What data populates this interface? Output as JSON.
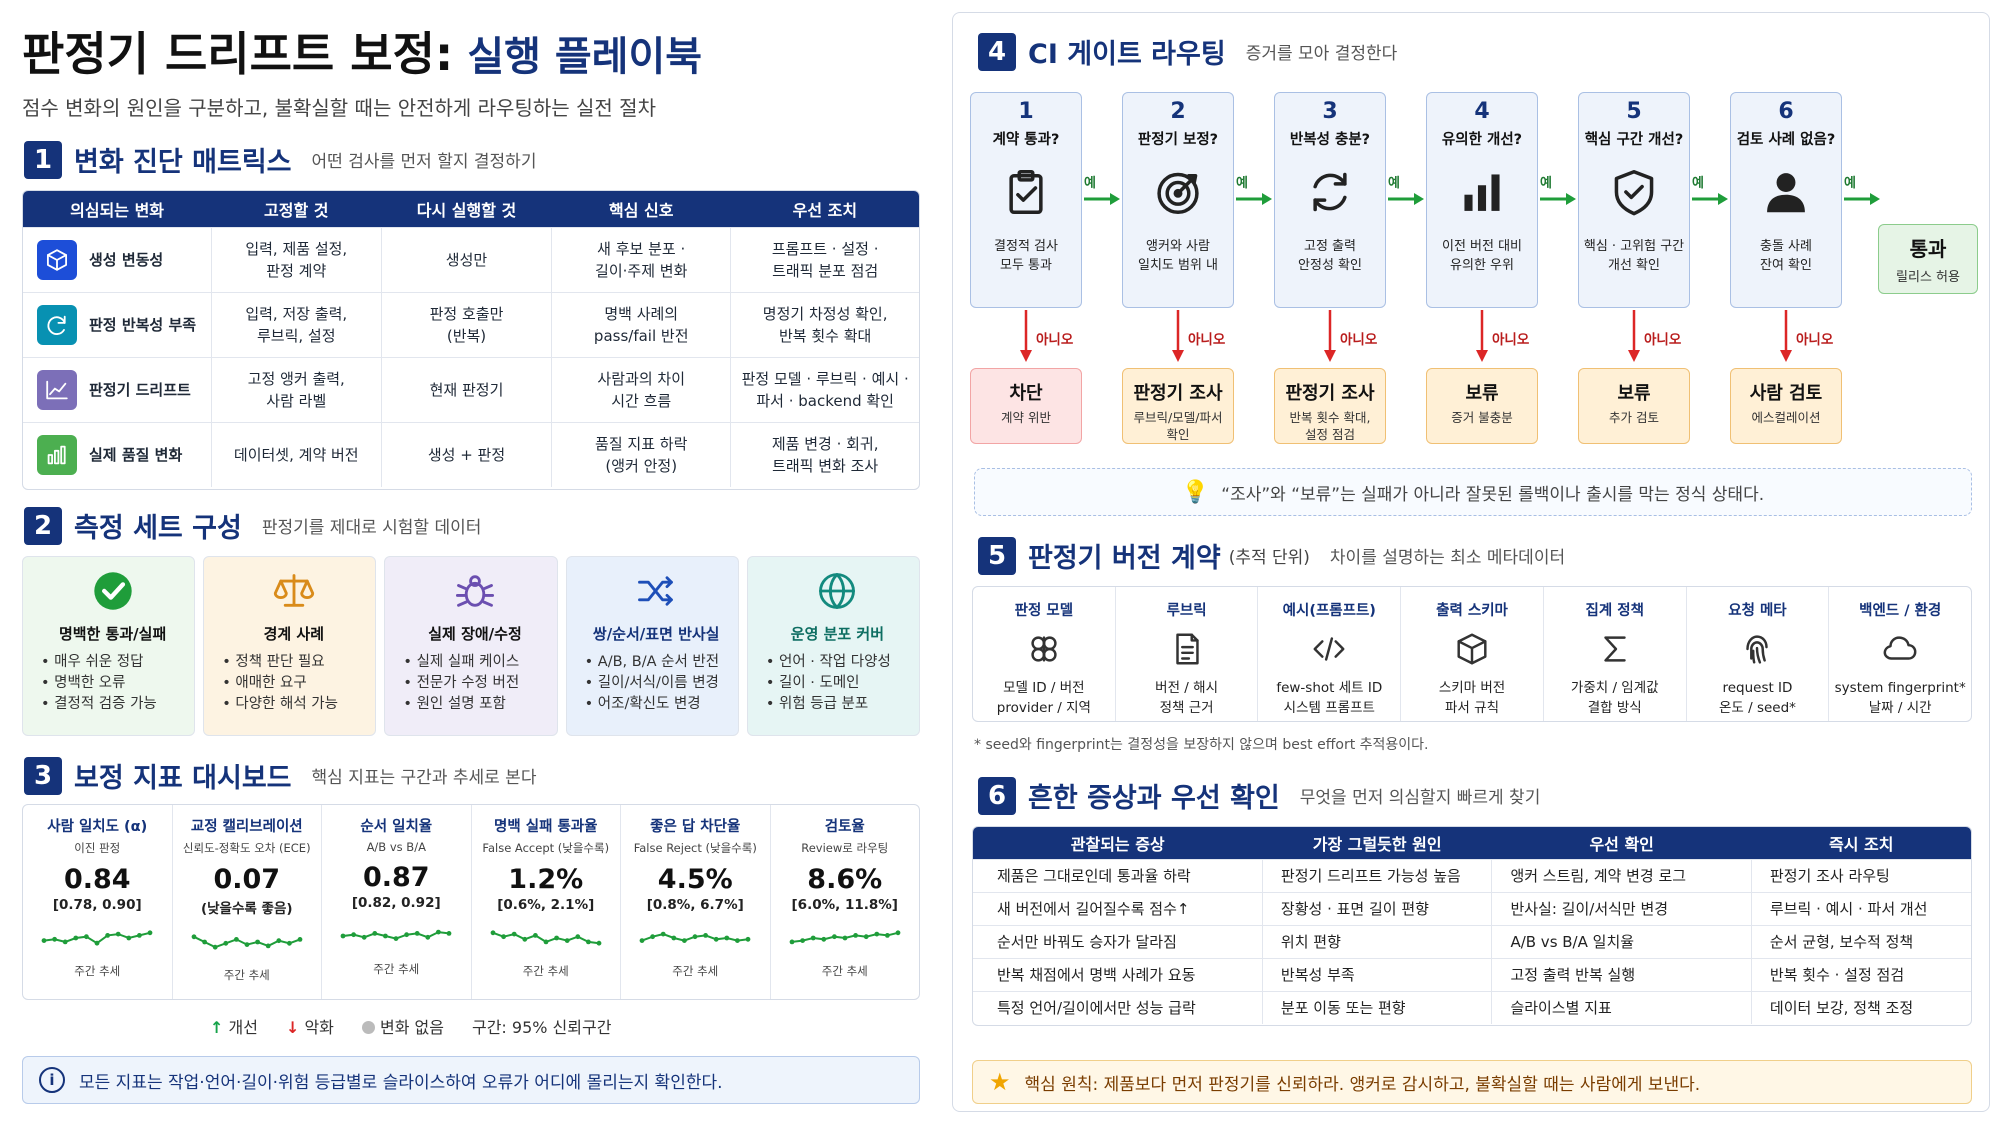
{
  "header": {
    "title_main": "판정기 드리프트 보정:",
    "title_sub": "실행 플레이북",
    "subtitle": "점수 변화의 원인을 구분하고, 불확실할 때는 안전하게 라우팅하는 실전 절차"
  },
  "s1": {
    "num": "1",
    "title": "변화 진단 매트릭스",
    "sub": "어떤 검사를 먼저 할지 결정하기",
    "headers": [
      "의심되는 변화",
      "고정할 것",
      "다시 실행할 것",
      "핵심 신호",
      "우선 조치"
    ],
    "rows": [
      {
        "icon": "cube-icon",
        "color": "#1d4ed8",
        "name": "생성 변동성",
        "fix": "입력, 제품 설정,\n판정 계약",
        "rerun": "생성만",
        "signal": "새 후보 분포 ·\n길이·주제 변화",
        "action": "프롬프트 · 설정 ·\n트래픽 분포 점검"
      },
      {
        "icon": "refresh-icon",
        "color": "#0891b2",
        "name": "판정 반복성 부족",
        "fix": "입력, 저장 출력,\n루브릭, 설정",
        "rerun": "판정 호출만\n(반복)",
        "signal": "명백 사례의\npass/fail 반전",
        "action": "명정기 차정성 확인,\n반복 횟수 확대"
      },
      {
        "icon": "trend-icon",
        "color": "#7c6fb8",
        "name": "판정기 드리프트",
        "fix": "고정 앵커 출력,\n사람 라벨",
        "rerun": "현재 판정기",
        "signal": "사람과의 차이\n시간 흐름",
        "action": "판정 모델 · 루브릭 · 예시 ·\n파서 · backend 확인"
      },
      {
        "icon": "bars-icon",
        "color": "#4caf50",
        "name": "실제 품질 변화",
        "fix": "데이터셋, 계약 버전",
        "rerun": "생성 + 판정",
        "signal": "품질 지표 하락\n(앵커 안정)",
        "action": "제품 변경 · 회귀,\n트래픽 변화 조사"
      }
    ]
  },
  "s2": {
    "num": "2",
    "title": "측정 세트 구성",
    "sub": "판정기를 제대로 시험할 데이터",
    "cards": [
      {
        "icon": "check-icon",
        "bg": "#eef8ee",
        "title": "명백한 통과/실패",
        "items": [
          "매우 쉬운 정답",
          "명백한 오류",
          "결정적 검증 가능"
        ]
      },
      {
        "icon": "scale-icon",
        "bg": "#fdf3e2",
        "title": "경계 사례",
        "items": [
          "정책 판단 필요",
          "애매한 요구",
          "다양한 해석 가능"
        ]
      },
      {
        "icon": "bug-icon",
        "bg": "#f0edf8",
        "title": "실제 장애/수정",
        "items": [
          "실제 실패 케이스",
          "전문가 수정 버전",
          "원인 설명 포함"
        ]
      },
      {
        "icon": "shuffle-icon",
        "bg": "#e8f0fb",
        "title": "쌍/순서/표면 반사실",
        "items": [
          "A/B, B/A 순서 반전",
          "길이/서식/이름 변경",
          "어조/확신도 변경"
        ]
      },
      {
        "icon": "globe-icon",
        "bg": "#e6f5f4",
        "title": "운영 분포 커버",
        "items": [
          "언어 · 작업 다양성",
          "길이 · 도메인",
          "위험 등급 분포"
        ]
      }
    ]
  },
  "s3": {
    "num": "3",
    "title": "보정 지표 대시보드",
    "sub": "핵심 지표는 구간과 추세로 본다",
    "metrics": [
      {
        "name": "사람 일치도 (α)",
        "desc": "이진 판정",
        "value": "0.84",
        "ci": "[0.78, 0.90]",
        "trend": "주간 추세",
        "spark": [
          0.4,
          0.45,
          0.35,
          0.5,
          0.55,
          0.3,
          0.6,
          0.65,
          0.5,
          0.6,
          0.7
        ]
      },
      {
        "name": "교정 캘리브레이션",
        "desc": "신뢰도-정확도 오차 (ECE)",
        "value": "0.07",
        "ci": "(낮을수록 좋음)",
        "trend": "주간 추세",
        "spark": [
          0.7,
          0.5,
          0.3,
          0.45,
          0.6,
          0.4,
          0.5,
          0.35,
          0.55,
          0.45,
          0.6
        ]
      },
      {
        "name": "순서 일치율",
        "desc": "A/B vs B/A",
        "value": "0.87",
        "ci": "[0.82, 0.92]",
        "trend": "주간 추세",
        "spark": [
          0.5,
          0.55,
          0.45,
          0.6,
          0.5,
          0.4,
          0.55,
          0.6,
          0.45,
          0.65,
          0.6
        ]
      },
      {
        "name": "명백 실패 통과율",
        "desc": "False Accept (낮을수록)",
        "value": "1.2%",
        "ci": "[0.6%, 2.1%]",
        "trend": "주간 추세",
        "spark": [
          0.7,
          0.55,
          0.65,
          0.45,
          0.6,
          0.35,
          0.5,
          0.4,
          0.55,
          0.35,
          0.3
        ]
      },
      {
        "name": "좋은 답 차단율",
        "desc": "False Reject (낮을수록)",
        "value": "4.5%",
        "ci": "[0.8%, 6.7%]",
        "trend": "주간 추세",
        "spark": [
          0.4,
          0.55,
          0.65,
          0.5,
          0.4,
          0.55,
          0.6,
          0.45,
          0.5,
          0.4,
          0.45
        ]
      },
      {
        "name": "검토율",
        "desc": "Review로 라우팅",
        "value": "8.6%",
        "ci": "[6.0%, 11.8%]",
        "trend": "주간 추세",
        "spark": [
          0.35,
          0.4,
          0.5,
          0.45,
          0.55,
          0.5,
          0.6,
          0.55,
          0.65,
          0.6,
          0.7
        ]
      }
    ],
    "legend": {
      "up": "개선",
      "down": "악화",
      "none": "변화 없음",
      "interval": "구간: 95% 신뢰구간"
    }
  },
  "note_left": "모든 지표는 작업·언어·길이·위험 등급별로 슬라이스하여 오류가 어디에 몰리는지 확인한다.",
  "s4": {
    "num": "4",
    "title": "CI 게이트 라우팅",
    "sub": "증거를 모아 결정한다",
    "yes": "예",
    "no": "아니오",
    "steps": [
      {
        "n": "1",
        "q": "계약 통과?",
        "icon": "clipboard-icon",
        "desc": "결정적 검사\n모두 통과",
        "fail_title": "차단",
        "fail_desc": "계약 위반",
        "fail_type": "red"
      },
      {
        "n": "2",
        "q": "판정기 보정?",
        "icon": "target-icon",
        "desc": "앵커와 사람\n일치도 범위 내",
        "fail_title": "판정기 조사",
        "fail_desc": "루브릭/모델/파서\n확인",
        "fail_type": "orange"
      },
      {
        "n": "3",
        "q": "반복성 충분?",
        "icon": "cycle-icon",
        "desc": "고정 출력\n안정성 확인",
        "fail_title": "판정기 조사",
        "fail_desc": "반복 횟수 확대,\n설정 점검",
        "fail_type": "orange"
      },
      {
        "n": "4",
        "q": "유의한 개선?",
        "icon": "chart-icon",
        "desc": "이전 버전 대비\n유의한 우위",
        "fail_title": "보류",
        "fail_desc": "증거 불충분",
        "fail_type": "orange"
      },
      {
        "n": "5",
        "q": "핵심 구간 개선?",
        "icon": "shield-icon",
        "desc": "핵심 · 고위험 구간\n개선 확인",
        "fail_title": "보류",
        "fail_desc": "추가 검토",
        "fail_type": "orange"
      },
      {
        "n": "6",
        "q": "검토 사례 없음?",
        "icon": "person-icon",
        "desc": "충돌 사례\n잔여 확인",
        "fail_title": "사람 검토",
        "fail_desc": "에스컬레이션",
        "fail_type": "orange"
      }
    ],
    "pass_title": "통과",
    "pass_desc": "릴리스 허용",
    "note": "“조사”와 “보류”는 실패가 아니라 잘못된 롤백이나 출시를 막는 정식 상태다."
  },
  "s5": {
    "num": "5",
    "title": "판정기 버전 계약",
    "unit": "(추적 단위)",
    "sub": "차이를 설명하는 최소 메타데이터",
    "items": [
      {
        "label": "판정 모델",
        "icon": "brain-icon",
        "desc": "모델 ID / 버전\nprovider / 지역"
      },
      {
        "label": "루브릭",
        "icon": "doc-icon",
        "desc": "버전 / 해시\n정책 근거"
      },
      {
        "label": "예시(프롬프트)",
        "icon": "code-icon",
        "desc": "few-shot 세트 ID\n시스템 프롬프트"
      },
      {
        "label": "출력 스키마",
        "icon": "box-icon",
        "desc": "스키마 버전\n파서 규칙"
      },
      {
        "label": "집계 정책",
        "icon": "sigma-icon",
        "desc": "가중치 / 임계값\n결합 방식"
      },
      {
        "label": "요청 메타",
        "icon": "fingerprint-icon",
        "desc": "request ID\n온도 / seed*"
      },
      {
        "label": "백엔드 / 환경",
        "icon": "cloud-icon",
        "desc": "system fingerprint*\n날짜 / 시간"
      }
    ],
    "footnote": "* seed와 fingerprint는 결정성을 보장하지 않으며 best effort 추적용이다."
  },
  "s6": {
    "num": "6",
    "title": "흔한 증상과 우선 확인",
    "sub": "무엇을 먼저 의심할지 빠르게 찾기",
    "headers": [
      "관찰되는 증상",
      "가장 그럴듯한 원인",
      "우선 확인",
      "즉시 조치"
    ],
    "rows": [
      [
        "제품은 그대로인데 통과율 하락",
        "판정기 드리프트 가능성 높음",
        "앵커 스트림, 계약 변경 로그",
        "판정기 조사 라우팅"
      ],
      [
        "새 버전에서 길어질수록 점수↑",
        "장황성 · 표면 길이 편향",
        "반사실: 길이/서식만 변경",
        "루브릭 · 예시 · 파서 개선"
      ],
      [
        "순서만 바꿔도 승자가 달라짐",
        "위치 편향",
        "A/B vs B/A 일치율",
        "순서 균형, 보수적 정책"
      ],
      [
        "반복 채점에서 명백 사례가 요동",
        "반복성 부족",
        "고정 출력 반복 실행",
        "반복 횟수 · 설정 점검"
      ],
      [
        "특정 언어/길이에서만 성능 급락",
        "분포 이동 또는 편향",
        "슬라이스별 지표",
        "데이터 보강, 정책 조정"
      ]
    ]
  },
  "note_right": "핵심 원칙: 제품보다 먼저 판정기를 신뢰하라. 앵커로 감시하고, 불확실할 때는 사람에게 보낸다."
}
